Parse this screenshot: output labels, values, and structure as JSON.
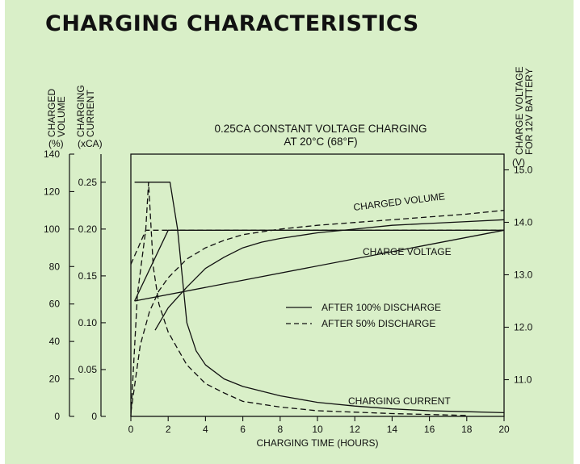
{
  "page_title": "CHARGING CHARACTERISTICS",
  "colors": {
    "background": "#d9efc8",
    "ink": "#111111"
  },
  "chart_data": {
    "type": "line",
    "title": "0.25CA CONSTANT VOLTAGE CHARGING",
    "subtitle": "AT 20°C (68°F)",
    "xlabel": "CHARGING TIME (HOURS)",
    "x_ticks": [
      "0",
      "2",
      "4",
      "6",
      "8",
      "10",
      "12",
      "14",
      "16",
      "18",
      "20"
    ],
    "xlim": [
      0,
      20
    ],
    "y_axes": {
      "volume": {
        "label_lines": [
          "CHARGED",
          "VOLUME"
        ],
        "unit": "(%)",
        "ticks": [
          "0",
          "20",
          "40",
          "60",
          "80",
          "100",
          "120",
          "140"
        ],
        "lim": [
          0,
          140
        ]
      },
      "current": {
        "label_lines": [
          "CHARGING",
          "CURRENT"
        ],
        "unit": "(xCA)",
        "ticks": [
          "0",
          "0.05",
          "0.10",
          "0.15",
          "0.20",
          "0.25"
        ],
        "lim": [
          0,
          0.28
        ]
      },
      "voltage": {
        "label_lines": [
          "CHARGE VOLTAGE",
          "FOR 12V BATTERY"
        ],
        "unit": "(V)",
        "ticks": [
          "11.0",
          "12.0",
          "13.0",
          "14.0",
          "15.0"
        ],
        "lim": [
          10.3,
          15.3
        ]
      }
    },
    "annotations": {
      "charged_volume": "CHARGED VOLUME",
      "charge_voltage": "CHARGE VOLTAGE",
      "charging_current": "CHARGING CURRENT"
    },
    "legend": {
      "placement": "center-right",
      "entries": [
        {
          "label": "AFTER 100% DISCHARGE",
          "style": "solid"
        },
        {
          "label": "AFTER 50% DISCHARGE",
          "style": "dashed"
        }
      ]
    },
    "series": [
      {
        "group": "volume",
        "style": "solid",
        "axis": "volume",
        "points": [
          [
            1.3,
            46
          ],
          [
            2,
            58
          ],
          [
            3,
            69
          ],
          [
            4,
            79
          ],
          [
            5,
            85
          ],
          [
            6,
            90
          ],
          [
            7,
            93
          ],
          [
            8,
            95
          ],
          [
            10,
            98
          ],
          [
            12,
            100
          ],
          [
            14,
            102
          ],
          [
            16,
            103
          ],
          [
            18,
            104
          ],
          [
            20,
            105
          ]
        ]
      },
      {
        "group": "volume",
        "style": "dashed",
        "axis": "volume",
        "points": [
          [
            0,
            2
          ],
          [
            0.5,
            38
          ],
          [
            1,
            56
          ],
          [
            1.5,
            67
          ],
          [
            2,
            74
          ],
          [
            3,
            84
          ],
          [
            4,
            90
          ],
          [
            5,
            94
          ],
          [
            6,
            97
          ],
          [
            8,
            100
          ],
          [
            10,
            102
          ],
          [
            12,
            103.5
          ],
          [
            14,
            105
          ],
          [
            16,
            106.5
          ],
          [
            18,
            108
          ],
          [
            20,
            110
          ]
        ]
      },
      {
        "group": "current",
        "style": "solid",
        "axis": "current",
        "points": [
          [
            0.2,
            0.25
          ],
          [
            2.1,
            0.25
          ],
          [
            2.5,
            0.2
          ],
          [
            3,
            0.1
          ],
          [
            3.5,
            0.07
          ],
          [
            4,
            0.055
          ],
          [
            5,
            0.04
          ],
          [
            6,
            0.032
          ],
          [
            8,
            0.022
          ],
          [
            10,
            0.015
          ],
          [
            12,
            0.011
          ],
          [
            14,
            0.008
          ],
          [
            16,
            0.006
          ],
          [
            18,
            0.005
          ],
          [
            20,
            0.004
          ]
        ]
      },
      {
        "group": "current",
        "style": "dashed",
        "axis": "current",
        "points": [
          [
            0,
            0.0
          ],
          [
            0.35,
            0.13
          ],
          [
            0.8,
            0.2
          ],
          [
            0.95,
            0.25
          ],
          [
            1.2,
            0.16
          ],
          [
            1.5,
            0.12
          ],
          [
            2,
            0.09
          ],
          [
            3,
            0.055
          ],
          [
            4,
            0.035
          ],
          [
            5,
            0.025
          ],
          [
            6,
            0.016
          ],
          [
            8,
            0.01
          ],
          [
            10,
            0.006
          ],
          [
            14,
            0.003
          ],
          [
            18,
            0.001
          ]
        ]
      },
      {
        "group": "voltage",
        "style": "solid",
        "axis": "voltage",
        "points": [
          [
            0.2,
            12.5
          ],
          [
            20,
            13.85
          ]
        ]
      },
      {
        "group": "voltage",
        "style": "solid",
        "axis": "voltage",
        "points": [
          [
            0.2,
            12.5
          ],
          [
            2,
            13.85
          ],
          [
            20,
            13.85
          ]
        ]
      },
      {
        "group": "voltage",
        "style": "dashed",
        "axis": "voltage",
        "points": [
          [
            0,
            13.2
          ],
          [
            0.8,
            13.85
          ],
          [
            20,
            13.85
          ]
        ]
      }
    ]
  }
}
